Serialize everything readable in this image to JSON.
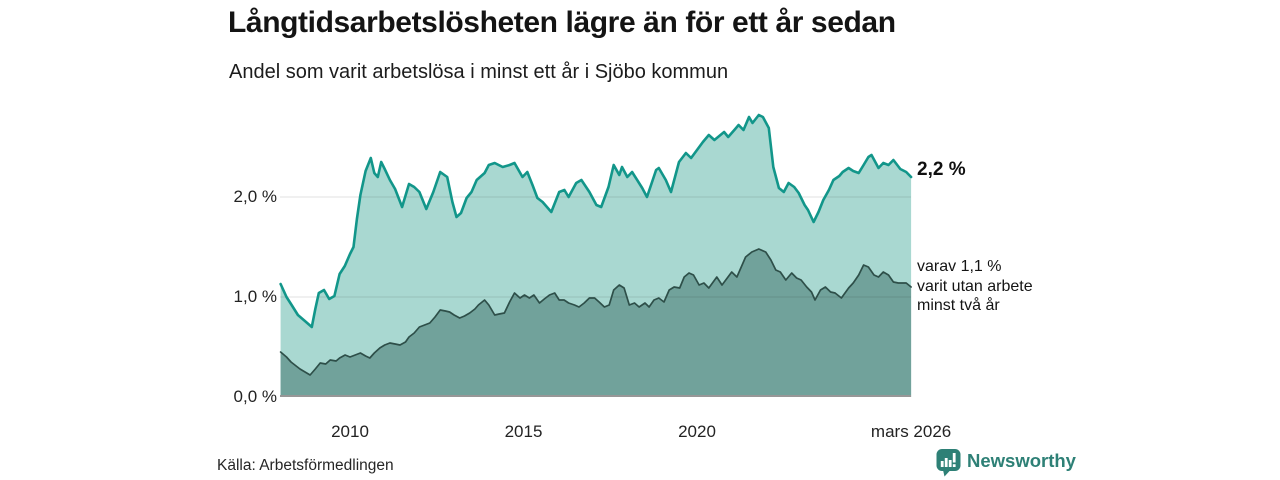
{
  "header": {
    "title": "Långtidsarbetslösheten lägre än för ett år sedan",
    "subtitle": "Andel som varit arbetslösa i minst ett år i Sjöbo kommun"
  },
  "annotations": {
    "total_end_label": "2,2 %",
    "breakdown_lines": [
      "varav 1,1 %",
      "varit utan arbete",
      "minst två år"
    ]
  },
  "footer": {
    "source_label": "Källa: Arbetsförmedlingen",
    "brand_name": "Newsworthy",
    "brand_color": "#2e8076"
  },
  "chart_data": {
    "type": "area",
    "title": "Långtidsarbetslösheten lägre än för ett år sedan",
    "subtitle": "Andel som varit arbetslösa i minst ett år i Sjöbo kommun",
    "unit": "percent",
    "grid": true,
    "legend_position": "none",
    "x_axis": {
      "range": [
        2008.0,
        2026.17
      ],
      "ticks": [
        {
          "label": "2010",
          "x": 2010
        },
        {
          "label": "2015",
          "x": 2015
        },
        {
          "label": "2020",
          "x": 2020
        },
        {
          "label": "mars 2026",
          "x": 2026.17
        }
      ]
    },
    "y_axis": {
      "range": [
        0,
        2.9
      ],
      "ticks": [
        {
          "label": "0,0 %",
          "v": 0
        },
        {
          "label": "1,0 %",
          "v": 1
        },
        {
          "label": "2,0 %",
          "v": 2
        }
      ],
      "gridlines": [
        1,
        2
      ]
    },
    "series": [
      {
        "name": "Andel arbetslösa minst ett år",
        "end_value": 2.2,
        "end_label": "2,2 %",
        "line_color": "#12968a",
        "fill_color": "#a9d8d1",
        "points": [
          [
            2008.0,
            1.13
          ],
          [
            2008.17,
            1.0
          ],
          [
            2008.3,
            0.93
          ],
          [
            2008.5,
            0.82
          ],
          [
            2008.7,
            0.76
          ],
          [
            2008.9,
            0.7
          ],
          [
            2009.0,
            0.88
          ],
          [
            2009.1,
            1.04
          ],
          [
            2009.25,
            1.07
          ],
          [
            2009.4,
            0.98
          ],
          [
            2009.55,
            1.01
          ],
          [
            2009.7,
            1.23
          ],
          [
            2009.85,
            1.31
          ],
          [
            2010.0,
            1.43
          ],
          [
            2010.1,
            1.5
          ],
          [
            2010.2,
            1.78
          ],
          [
            2010.3,
            2.02
          ],
          [
            2010.45,
            2.26
          ],
          [
            2010.6,
            2.39
          ],
          [
            2010.7,
            2.24
          ],
          [
            2010.8,
            2.2
          ],
          [
            2010.9,
            2.35
          ],
          [
            2011.0,
            2.28
          ],
          [
            2011.15,
            2.17
          ],
          [
            2011.3,
            2.08
          ],
          [
            2011.5,
            1.9
          ],
          [
            2011.7,
            2.13
          ],
          [
            2011.85,
            2.1
          ],
          [
            2012.0,
            2.05
          ],
          [
            2012.2,
            1.88
          ],
          [
            2012.4,
            2.05
          ],
          [
            2012.6,
            2.25
          ],
          [
            2012.8,
            2.2
          ],
          [
            2012.95,
            1.95
          ],
          [
            2013.07,
            1.8
          ],
          [
            2013.2,
            1.84
          ],
          [
            2013.36,
            1.99
          ],
          [
            2013.5,
            2.05
          ],
          [
            2013.65,
            2.17
          ],
          [
            2013.88,
            2.24
          ],
          [
            2014.0,
            2.32
          ],
          [
            2014.17,
            2.34
          ],
          [
            2014.4,
            2.3
          ],
          [
            2014.6,
            2.32
          ],
          [
            2014.74,
            2.34
          ],
          [
            2014.97,
            2.2
          ],
          [
            2015.11,
            2.25
          ],
          [
            2015.26,
            2.12
          ],
          [
            2015.4,
            1.99
          ],
          [
            2015.55,
            1.95
          ],
          [
            2015.8,
            1.85
          ],
          [
            2016.03,
            2.05
          ],
          [
            2016.18,
            2.07
          ],
          [
            2016.3,
            2.0
          ],
          [
            2016.52,
            2.14
          ],
          [
            2016.67,
            2.17
          ],
          [
            2016.9,
            2.05
          ],
          [
            2017.1,
            1.92
          ],
          [
            2017.24,
            1.9
          ],
          [
            2017.45,
            2.1
          ],
          [
            2017.6,
            2.32
          ],
          [
            2017.76,
            2.22
          ],
          [
            2017.84,
            2.3
          ],
          [
            2017.99,
            2.2
          ],
          [
            2018.13,
            2.25
          ],
          [
            2018.42,
            2.09
          ],
          [
            2018.56,
            2.0
          ],
          [
            2018.82,
            2.27
          ],
          [
            2018.9,
            2.29
          ],
          [
            2019.1,
            2.17
          ],
          [
            2019.25,
            2.05
          ],
          [
            2019.48,
            2.35
          ],
          [
            2019.68,
            2.44
          ],
          [
            2019.83,
            2.39
          ],
          [
            2020.0,
            2.47
          ],
          [
            2020.17,
            2.55
          ],
          [
            2020.34,
            2.62
          ],
          [
            2020.5,
            2.57
          ],
          [
            2020.78,
            2.65
          ],
          [
            2020.9,
            2.6
          ],
          [
            2021.1,
            2.68
          ],
          [
            2021.2,
            2.72
          ],
          [
            2021.34,
            2.67
          ],
          [
            2021.5,
            2.8
          ],
          [
            2021.6,
            2.74
          ],
          [
            2021.78,
            2.82
          ],
          [
            2021.9,
            2.8
          ],
          [
            2022.07,
            2.69
          ],
          [
            2022.2,
            2.3
          ],
          [
            2022.36,
            2.09
          ],
          [
            2022.5,
            2.05
          ],
          [
            2022.64,
            2.14
          ],
          [
            2022.8,
            2.1
          ],
          [
            2022.93,
            2.04
          ],
          [
            2023.1,
            1.92
          ],
          [
            2023.2,
            1.87
          ],
          [
            2023.36,
            1.75
          ],
          [
            2023.5,
            1.85
          ],
          [
            2023.64,
            1.97
          ],
          [
            2023.8,
            2.07
          ],
          [
            2023.93,
            2.17
          ],
          [
            2024.1,
            2.21
          ],
          [
            2024.2,
            2.25
          ],
          [
            2024.37,
            2.29
          ],
          [
            2024.5,
            2.26
          ],
          [
            2024.66,
            2.24
          ],
          [
            2024.8,
            2.32
          ],
          [
            2024.94,
            2.4
          ],
          [
            2025.03,
            2.42
          ],
          [
            2025.23,
            2.29
          ],
          [
            2025.37,
            2.34
          ],
          [
            2025.52,
            2.32
          ],
          [
            2025.66,
            2.37
          ],
          [
            2025.86,
            2.28
          ],
          [
            2026.03,
            2.25
          ],
          [
            2026.17,
            2.2
          ]
        ]
      },
      {
        "name": "varav utan arbete minst två år",
        "end_value": 1.1,
        "end_label": "varav 1,1 % varit utan arbete minst två år",
        "line_color": "#2e4f49",
        "fill_color": "#71a29b",
        "points": [
          [
            2008.0,
            0.45
          ],
          [
            2008.17,
            0.4
          ],
          [
            2008.3,
            0.35
          ],
          [
            2008.56,
            0.28
          ],
          [
            2008.85,
            0.22
          ],
          [
            2009.0,
            0.28
          ],
          [
            2009.14,
            0.34
          ],
          [
            2009.3,
            0.33
          ],
          [
            2009.43,
            0.37
          ],
          [
            2009.6,
            0.36
          ],
          [
            2009.7,
            0.39
          ],
          [
            2009.86,
            0.42
          ],
          [
            2010.0,
            0.4
          ],
          [
            2010.15,
            0.42
          ],
          [
            2010.3,
            0.44
          ],
          [
            2010.45,
            0.41
          ],
          [
            2010.57,
            0.39
          ],
          [
            2010.7,
            0.44
          ],
          [
            2010.86,
            0.49
          ],
          [
            2011.0,
            0.52
          ],
          [
            2011.15,
            0.54
          ],
          [
            2011.3,
            0.53
          ],
          [
            2011.44,
            0.52
          ],
          [
            2011.6,
            0.55
          ],
          [
            2011.7,
            0.6
          ],
          [
            2011.85,
            0.64
          ],
          [
            2012.0,
            0.7
          ],
          [
            2012.15,
            0.72
          ],
          [
            2012.3,
            0.74
          ],
          [
            2012.45,
            0.8
          ],
          [
            2012.6,
            0.87
          ],
          [
            2012.75,
            0.86
          ],
          [
            2012.87,
            0.85
          ],
          [
            2013.0,
            0.82
          ],
          [
            2013.16,
            0.79
          ],
          [
            2013.3,
            0.81
          ],
          [
            2013.45,
            0.84
          ],
          [
            2013.6,
            0.88
          ],
          [
            2013.7,
            0.92
          ],
          [
            2013.88,
            0.97
          ],
          [
            2014.0,
            0.92
          ],
          [
            2014.17,
            0.82
          ],
          [
            2014.3,
            0.83
          ],
          [
            2014.45,
            0.84
          ],
          [
            2014.6,
            0.95
          ],
          [
            2014.74,
            1.04
          ],
          [
            2014.9,
            0.99
          ],
          [
            2015.03,
            1.02
          ],
          [
            2015.17,
            0.99
          ],
          [
            2015.3,
            1.02
          ],
          [
            2015.46,
            0.94
          ],
          [
            2015.6,
            0.98
          ],
          [
            2015.75,
            1.02
          ],
          [
            2015.9,
            1.04
          ],
          [
            2016.03,
            0.97
          ],
          [
            2016.17,
            0.97
          ],
          [
            2016.3,
            0.94
          ],
          [
            2016.47,
            0.92
          ],
          [
            2016.6,
            0.9
          ],
          [
            2016.75,
            0.94
          ],
          [
            2016.9,
            0.99
          ],
          [
            2017.05,
            0.99
          ],
          [
            2017.18,
            0.95
          ],
          [
            2017.33,
            0.9
          ],
          [
            2017.47,
            0.92
          ],
          [
            2017.6,
            1.07
          ],
          [
            2017.76,
            1.12
          ],
          [
            2017.9,
            1.09
          ],
          [
            2018.05,
            0.92
          ],
          [
            2018.2,
            0.94
          ],
          [
            2018.33,
            0.9
          ],
          [
            2018.5,
            0.94
          ],
          [
            2018.62,
            0.9
          ],
          [
            2018.76,
            0.97
          ],
          [
            2018.9,
            0.99
          ],
          [
            2019.05,
            0.95
          ],
          [
            2019.2,
            1.07
          ],
          [
            2019.34,
            1.1
          ],
          [
            2019.5,
            1.09
          ],
          [
            2019.63,
            1.2
          ],
          [
            2019.77,
            1.24
          ],
          [
            2019.9,
            1.22
          ],
          [
            2020.06,
            1.12
          ],
          [
            2020.2,
            1.14
          ],
          [
            2020.34,
            1.09
          ],
          [
            2020.57,
            1.2
          ],
          [
            2020.72,
            1.12
          ],
          [
            2020.85,
            1.18
          ],
          [
            2021.0,
            1.25
          ],
          [
            2021.15,
            1.2
          ],
          [
            2021.4,
            1.4
          ],
          [
            2021.58,
            1.45
          ],
          [
            2021.78,
            1.48
          ],
          [
            2021.98,
            1.45
          ],
          [
            2022.13,
            1.37
          ],
          [
            2022.27,
            1.27
          ],
          [
            2022.4,
            1.25
          ],
          [
            2022.56,
            1.17
          ],
          [
            2022.73,
            1.24
          ],
          [
            2022.87,
            1.19
          ],
          [
            2023.0,
            1.17
          ],
          [
            2023.16,
            1.1
          ],
          [
            2023.3,
            1.05
          ],
          [
            2023.4,
            0.97
          ],
          [
            2023.56,
            1.07
          ],
          [
            2023.7,
            1.1
          ],
          [
            2023.85,
            1.05
          ],
          [
            2023.98,
            1.04
          ],
          [
            2024.16,
            0.99
          ],
          [
            2024.37,
            1.09
          ],
          [
            2024.5,
            1.14
          ],
          [
            2024.66,
            1.22
          ],
          [
            2024.8,
            1.32
          ],
          [
            2024.94,
            1.3
          ],
          [
            2025.1,
            1.22
          ],
          [
            2025.23,
            1.2
          ],
          [
            2025.37,
            1.25
          ],
          [
            2025.52,
            1.22
          ],
          [
            2025.66,
            1.15
          ],
          [
            2025.8,
            1.14
          ],
          [
            2026.03,
            1.14
          ],
          [
            2026.17,
            1.1
          ]
        ]
      }
    ]
  }
}
